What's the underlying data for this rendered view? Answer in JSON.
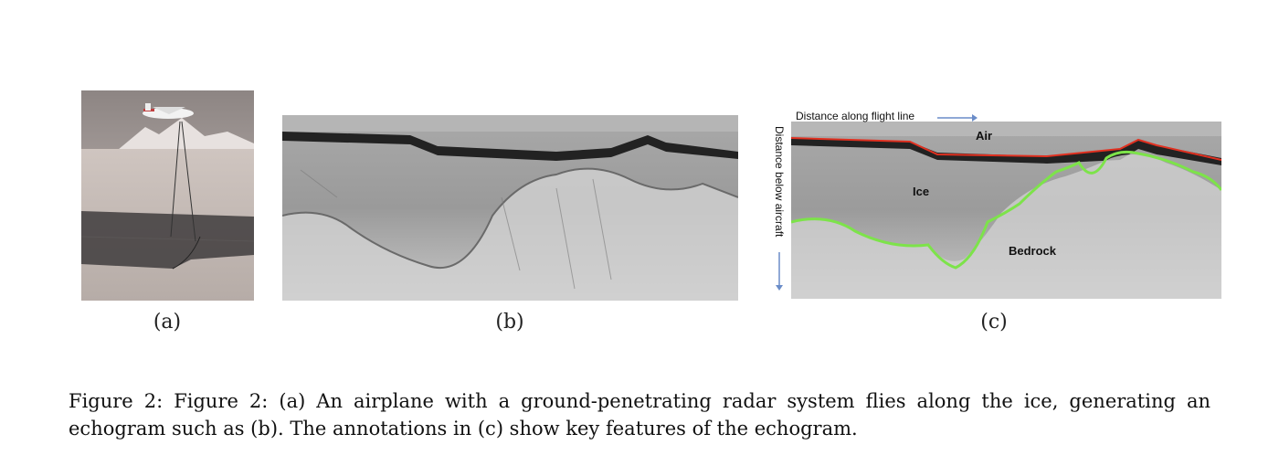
{
  "figure": {
    "panels": [
      {
        "id": "a",
        "label": "(a)"
      },
      {
        "id": "b",
        "label": "(b)"
      },
      {
        "id": "c",
        "label": "(c)"
      }
    ],
    "annotations": {
      "distance_along": "Distance along flight line",
      "distance_below": "Distance below aircraft",
      "air": "Air",
      "ice": "Ice",
      "bedrock": "Bedrock"
    },
    "colors": {
      "air_ice_boundary": "#e03020",
      "ice_bedrock_boundary": "#7de34a",
      "arrow": "#6a8cc8"
    },
    "caption": "Figure 2: Figure 2: (a) An airplane with a ground-penetrating radar system flies along the ice, generating an echogram such as (b). The annotations in (c) show key features of the echogram."
  }
}
